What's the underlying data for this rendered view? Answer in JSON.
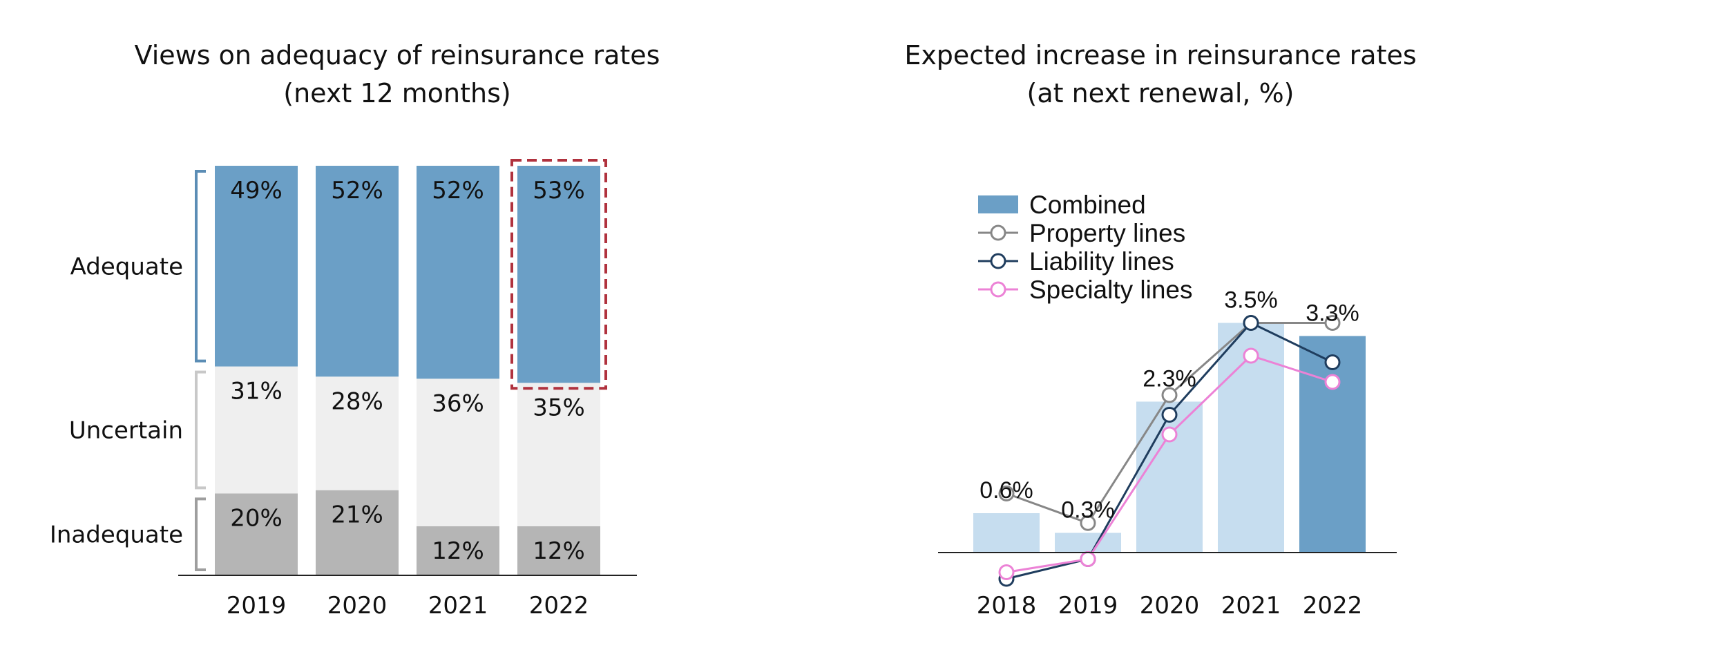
{
  "colors": {
    "adequate": "#6b9fc6",
    "uncertain": "#efefef",
    "inadequate": "#b5b5b5",
    "bracket_adequate": "#5b8db5",
    "bracket_other": "#c8c8c8",
    "bracket_inadequate": "#9e9e9e",
    "highlight": "#b0323e",
    "combined_light": "#c6ddef",
    "combined_dark": "#6b9fc6",
    "property": "#878787",
    "liability": "#1f3d5e",
    "specialty": "#ec82d6",
    "axis": "#222222"
  },
  "chart_data": [
    {
      "type": "bar",
      "stacked": true,
      "normalized": true,
      "title": "Views on adequacy of reinsurance rates",
      "subtitle": "(next 12 months)",
      "categories": [
        "2019",
        "2020",
        "2021",
        "2022"
      ],
      "series": [
        {
          "name": "Inadequate",
          "values": [
            20,
            21,
            12,
            12
          ],
          "labels": [
            "20%",
            "21%",
            "12%",
            "12%"
          ],
          "color_key": "inadequate",
          "bracket_key": "bracket_inadequate"
        },
        {
          "name": "Uncertain",
          "values": [
            31,
            28,
            36,
            35
          ],
          "labels": [
            "31%",
            "28%",
            "36%",
            "35%"
          ],
          "color_key": "uncertain",
          "bracket_key": "bracket_other"
        },
        {
          "name": "Adequate",
          "values": [
            49,
            52,
            52,
            53
          ],
          "labels": [
            "49%",
            "52%",
            "52%",
            "53%"
          ],
          "color_key": "adequate",
          "bracket_key": "bracket_adequate"
        }
      ],
      "highlight": {
        "category": "2022",
        "series": "Adequate",
        "style": "dashed"
      }
    },
    {
      "type": "bar",
      "combo": "bar+line",
      "title": "Expected increase in reinsurance rates",
      "subtitle": "(at next renewal, %)",
      "categories": [
        "2018",
        "2019",
        "2020",
        "2021",
        "2022"
      ],
      "series": [
        {
          "name": "Combined",
          "kind": "bar",
          "values": [
            0.6,
            0.3,
            2.3,
            3.5,
            3.3
          ],
          "labels": [
            "0.6%",
            "0.3%",
            "2.3%",
            "3.5%",
            "3.3%"
          ]
        },
        {
          "name": "Property lines",
          "kind": "line",
          "values": [
            0.9,
            0.45,
            2.4,
            3.5,
            3.5
          ],
          "color_key": "property"
        },
        {
          "name": "Liability lines",
          "kind": "line",
          "values": [
            -0.4,
            -0.1,
            2.1,
            3.5,
            2.9
          ],
          "color_key": "liability"
        },
        {
          "name": "Specialty lines",
          "kind": "line",
          "values": [
            -0.3,
            -0.1,
            1.8,
            3.0,
            2.6
          ],
          "color_key": "specialty"
        }
      ],
      "bar_colors": [
        "combined_light",
        "combined_light",
        "combined_light",
        "combined_light",
        "combined_dark"
      ],
      "legend_position": "top-left",
      "ylim": [
        -0.5,
        4.0
      ]
    }
  ]
}
